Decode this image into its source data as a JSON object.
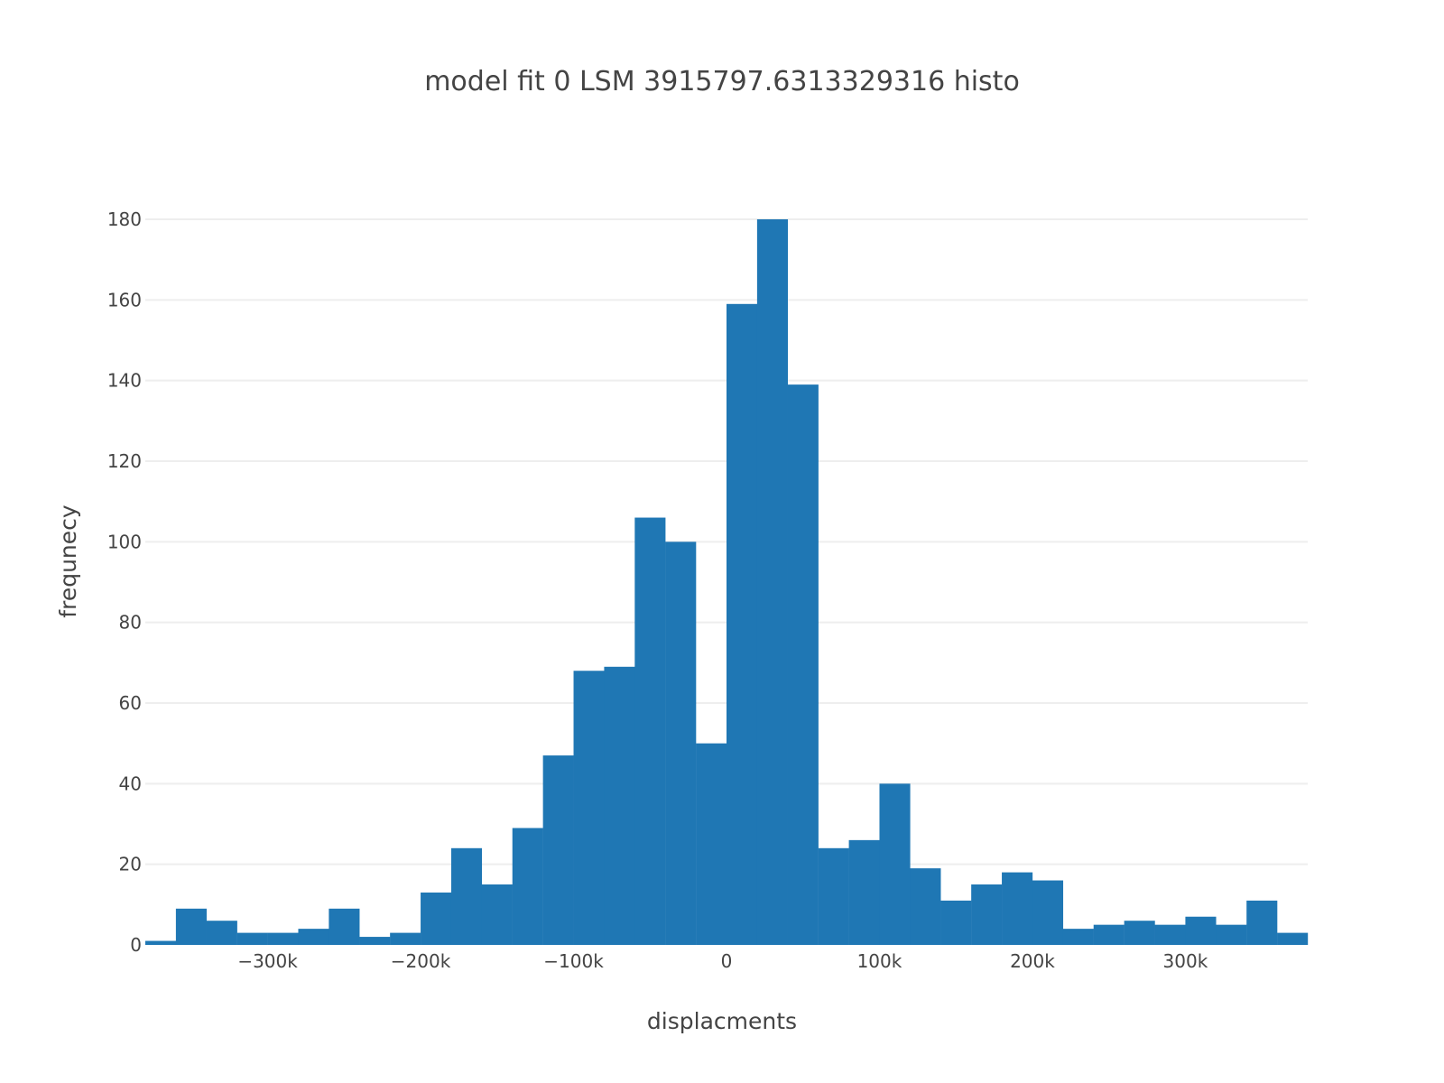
{
  "chart_data": {
    "type": "bar",
    "title": "model fit 0   LSM 3915797.6313329316  histo",
    "xlabel": "displacments",
    "ylabel": "frequnecy",
    "xlim": [
      -380000,
      380000
    ],
    "ylim": [
      0,
      180
    ],
    "bin_width": 20000,
    "bins": [
      {
        "x0": -380000,
        "x1": -360000,
        "count": 1
      },
      {
        "x0": -360000,
        "x1": -340000,
        "count": 9
      },
      {
        "x0": -340000,
        "x1": -320000,
        "count": 6
      },
      {
        "x0": -320000,
        "x1": -300000,
        "count": 3
      },
      {
        "x0": -300000,
        "x1": -280000,
        "count": 3
      },
      {
        "x0": -280000,
        "x1": -260000,
        "count": 4
      },
      {
        "x0": -260000,
        "x1": -240000,
        "count": 9
      },
      {
        "x0": -240000,
        "x1": -220000,
        "count": 2
      },
      {
        "x0": -220000,
        "x1": -200000,
        "count": 3
      },
      {
        "x0": -200000,
        "x1": -180000,
        "count": 13
      },
      {
        "x0": -180000,
        "x1": -160000,
        "count": 24
      },
      {
        "x0": -160000,
        "x1": -140000,
        "count": 15
      },
      {
        "x0": -140000,
        "x1": -120000,
        "count": 29
      },
      {
        "x0": -120000,
        "x1": -100000,
        "count": 47
      },
      {
        "x0": -100000,
        "x1": -80000,
        "count": 68
      },
      {
        "x0": -80000,
        "x1": -60000,
        "count": 69
      },
      {
        "x0": -60000,
        "x1": -40000,
        "count": 106
      },
      {
        "x0": -40000,
        "x1": -20000,
        "count": 100
      },
      {
        "x0": -20000,
        "x1": 0,
        "count": 50
      },
      {
        "x0": 0,
        "x1": 20000,
        "count": 159
      },
      {
        "x0": 20000,
        "x1": 40000,
        "count": 180
      },
      {
        "x0": 40000,
        "x1": 60000,
        "count": 139
      },
      {
        "x0": 60000,
        "x1": 80000,
        "count": 24
      },
      {
        "x0": 80000,
        "x1": 100000,
        "count": 26
      },
      {
        "x0": 100000,
        "x1": 120000,
        "count": 40
      },
      {
        "x0": 120000,
        "x1": 140000,
        "count": 19
      },
      {
        "x0": 140000,
        "x1": 160000,
        "count": 11
      },
      {
        "x0": 160000,
        "x1": 180000,
        "count": 15
      },
      {
        "x0": 180000,
        "x1": 200000,
        "count": 18
      },
      {
        "x0": 200000,
        "x1": 220000,
        "count": 16
      },
      {
        "x0": 220000,
        "x1": 240000,
        "count": 4
      },
      {
        "x0": 240000,
        "x1": 260000,
        "count": 5
      },
      {
        "x0": 260000,
        "x1": 280000,
        "count": 6
      },
      {
        "x0": 280000,
        "x1": 300000,
        "count": 5
      },
      {
        "x0": 300000,
        "x1": 320000,
        "count": 7
      },
      {
        "x0": 320000,
        "x1": 340000,
        "count": 5
      },
      {
        "x0": 340000,
        "x1": 360000,
        "count": 11
      },
      {
        "x0": 360000,
        "x1": 380000,
        "count": 3
      }
    ],
    "x_ticks": [
      {
        "value": -300000,
        "label": "−300k"
      },
      {
        "value": -200000,
        "label": "−200k"
      },
      {
        "value": -100000,
        "label": "−100k"
      },
      {
        "value": 0,
        "label": "0"
      },
      {
        "value": 100000,
        "label": "100k"
      },
      {
        "value": 200000,
        "label": "200k"
      },
      {
        "value": 300000,
        "label": "300k"
      }
    ],
    "y_ticks": [
      {
        "value": 0,
        "label": "0"
      },
      {
        "value": 20,
        "label": "20"
      },
      {
        "value": 40,
        "label": "40"
      },
      {
        "value": 60,
        "label": "60"
      },
      {
        "value": 80,
        "label": "80"
      },
      {
        "value": 100,
        "label": "100"
      },
      {
        "value": 120,
        "label": "120"
      },
      {
        "value": 140,
        "label": "140"
      },
      {
        "value": 160,
        "label": "160"
      },
      {
        "value": 180,
        "label": "180"
      }
    ],
    "grid": {
      "y": true,
      "x": false
    },
    "legend": "none",
    "colors": {
      "bar": "#1f77b4",
      "grid": "#eeeeee",
      "text": "#444444",
      "background": "#ffffff"
    }
  }
}
